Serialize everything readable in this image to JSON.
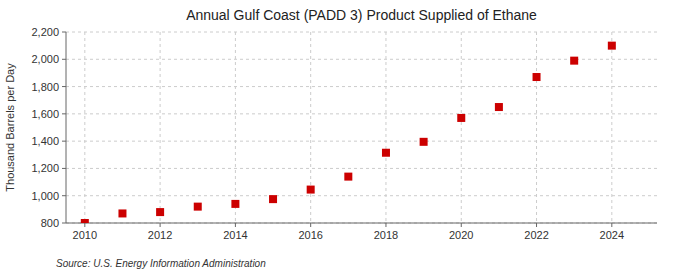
{
  "chart_data": {
    "type": "scatter",
    "title": "Annual Gulf Coast (PADD 3) Product Supplied of Ethane",
    "ylabel": "Thousand Barrels per Day",
    "annotations": [
      "Source: U.S. Energy Information Administration"
    ],
    "x": [
      2010,
      2011,
      2012,
      2013,
      2014,
      2015,
      2016,
      2017,
      2018,
      2019,
      2020,
      2021,
      2022,
      2023,
      2024
    ],
    "values": [
      800,
      870,
      880,
      920,
      940,
      975,
      1045,
      1140,
      1315,
      1395,
      1570,
      1650,
      1870,
      1990,
      2100
    ],
    "color": "#cc0000",
    "marker": "square",
    "xlim": [
      2009.5,
      2025.2
    ],
    "xticks": [
      2010,
      2012,
      2014,
      2016,
      2018,
      2020,
      2022,
      2024
    ],
    "ylim": [
      800,
      2200
    ],
    "yticks": [
      800,
      {
        "value": 1000,
        "label": "1,000"
      },
      {
        "value": 1200,
        "label": "1,200"
      },
      {
        "value": 1400,
        "label": "1,400"
      },
      {
        "value": 1600,
        "label": "1,600"
      },
      {
        "value": 1800,
        "label": "1,800"
      },
      {
        "value": 2000,
        "label": "2,000"
      },
      {
        "value": 2200,
        "label": "2,200"
      }
    ],
    "grid": true
  }
}
